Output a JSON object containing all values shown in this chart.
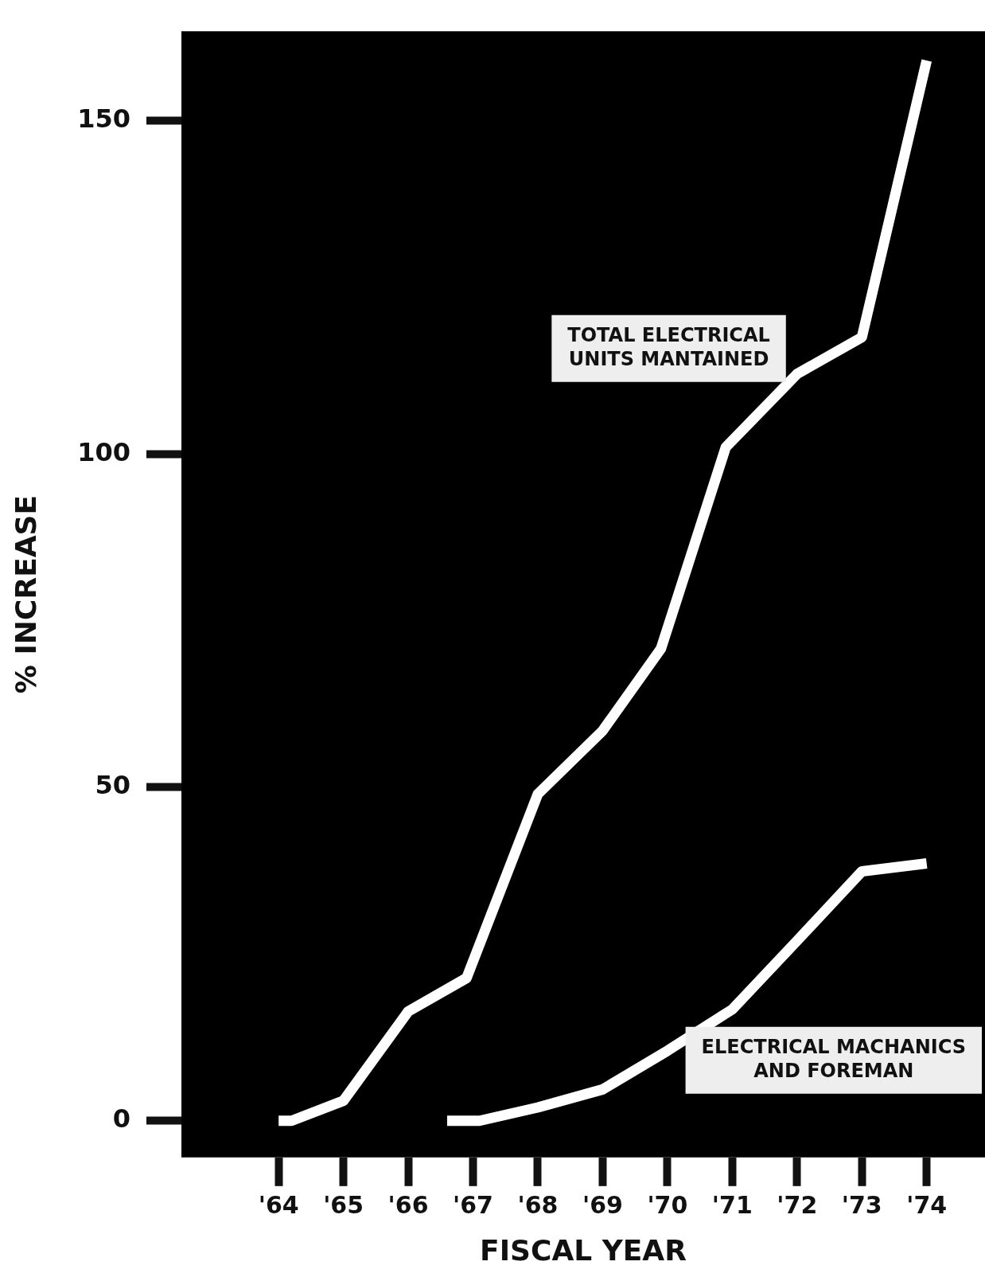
{
  "chart_data": {
    "type": "line",
    "xlabel": "FISCAL YEAR",
    "ylabel": "% INCREASE",
    "xlim": [
      1962.5,
      1974.9
    ],
    "ylim": [
      -5.5,
      163.4
    ],
    "xticks": [
      {
        "value": 1964,
        "label": "'64"
      },
      {
        "value": 1965,
        "label": "'65"
      },
      {
        "value": 1966,
        "label": "'66"
      },
      {
        "value": 1967,
        "label": "'67"
      },
      {
        "value": 1968,
        "label": "'68"
      },
      {
        "value": 1969,
        "label": "'69"
      },
      {
        "value": 1970,
        "label": "'70"
      },
      {
        "value": 1971,
        "label": "'71"
      },
      {
        "value": 1972,
        "label": "'72"
      },
      {
        "value": 1973,
        "label": "'73"
      },
      {
        "value": 1974,
        "label": "'74"
      }
    ],
    "yticks": [
      0,
      50,
      100,
      150
    ],
    "grid": false,
    "legend": false,
    "marker": "none",
    "line_style": "solid",
    "series": [
      {
        "name": "TOTAL ELECTRICAL UNITS MANTAINED",
        "color": "#ffffff",
        "x": [
          1964,
          1964.2,
          1965,
          1966,
          1966.9,
          1968,
          1969,
          1969.9,
          1970.9,
          1972,
          1973,
          1974
        ],
        "values": [
          0,
          0,
          3,
          16.4,
          21.4,
          49,
          58.5,
          70.8,
          101,
          112,
          117.5,
          159
        ]
      },
      {
        "name": "ELECTRICAL MACHANICS AND FOREMAN",
        "color": "#ffffff",
        "x": [
          1966.6,
          1967.1,
          1968,
          1969,
          1970,
          1971,
          1972,
          1973,
          1974
        ],
        "values": [
          0,
          0,
          2,
          4.7,
          10.5,
          16.7,
          27,
          37.4,
          38.6
        ]
      }
    ]
  }
}
